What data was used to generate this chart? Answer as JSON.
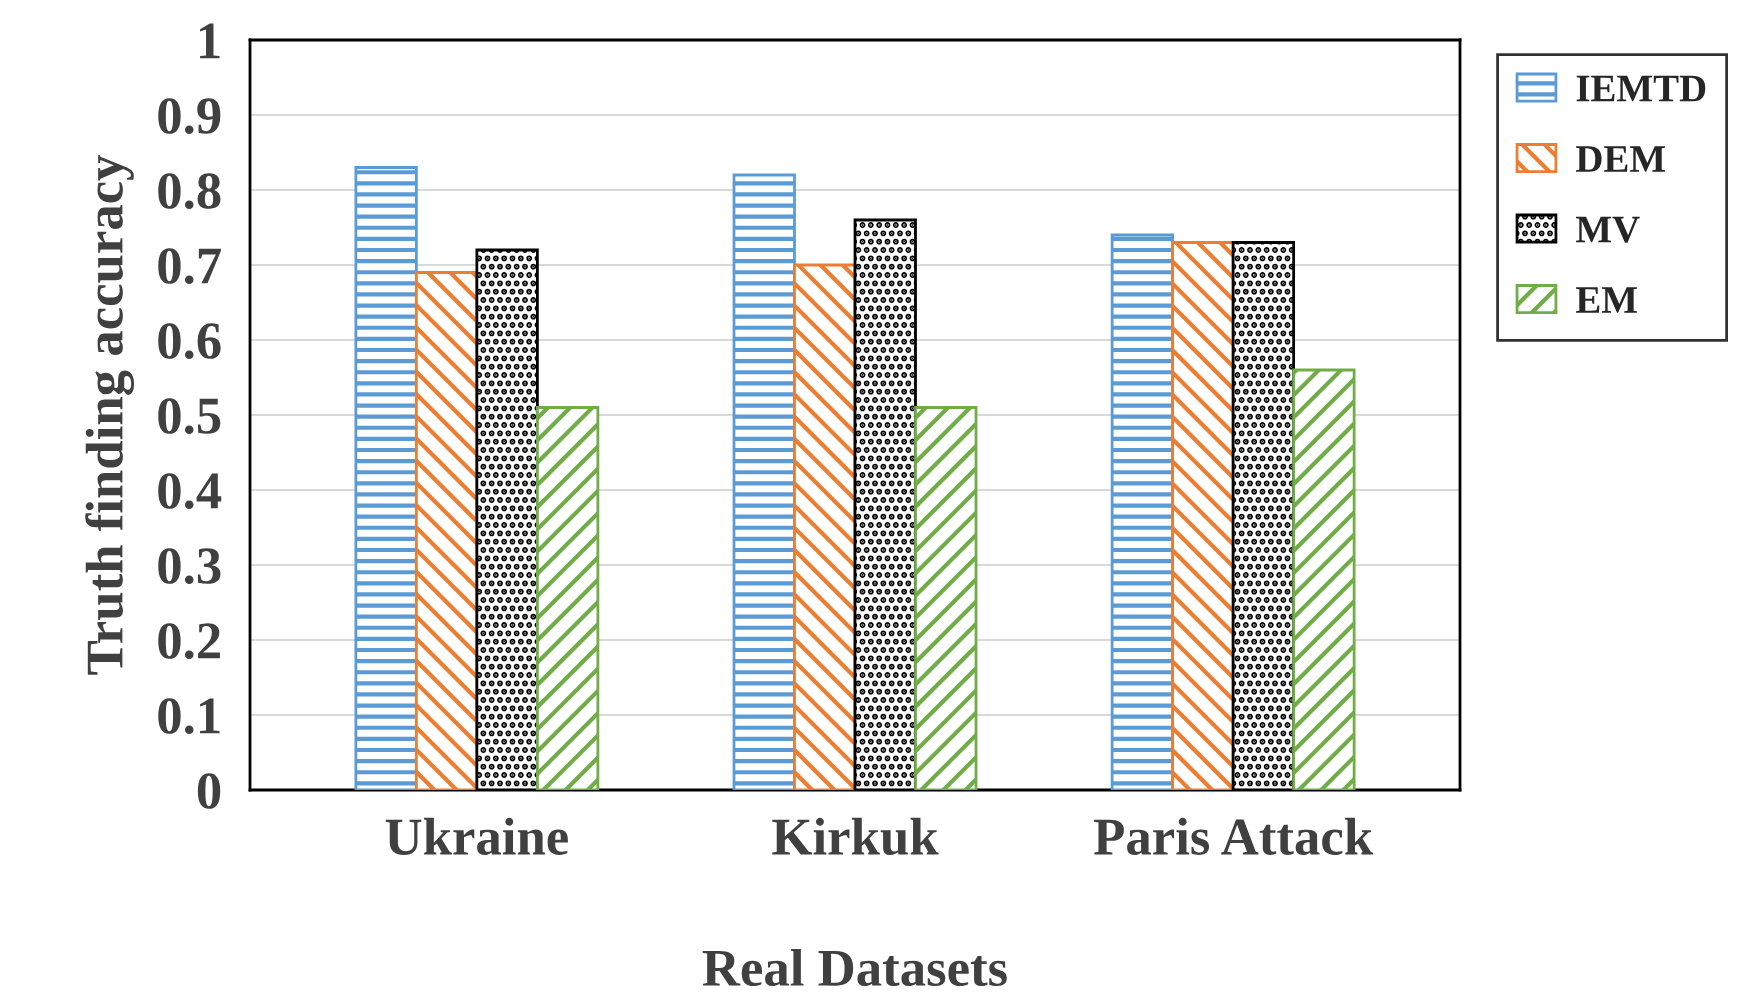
{
  "chart_data": {
    "type": "bar",
    "xlabel": "Real Datasets",
    "ylabel": "Truth finding accuracy",
    "categories": [
      "Ukraine",
      "Kirkuk",
      "Paris Attack"
    ],
    "series": [
      {
        "name": "IEMTD",
        "color": "#5b9bd5",
        "values": [
          0.83,
          0.82,
          0.74
        ]
      },
      {
        "name": "DEM",
        "color": "#ed7d31",
        "values": [
          0.69,
          0.7,
          0.73
        ]
      },
      {
        "name": "MV",
        "color": "#000000",
        "values": [
          0.72,
          0.76,
          0.73
        ]
      },
      {
        "name": "EM",
        "color": "#70ad47",
        "values": [
          0.51,
          0.51,
          0.56
        ]
      }
    ],
    "ylim": [
      0,
      1
    ],
    "yticks": [
      0,
      0.1,
      0.2,
      0.3,
      0.4,
      0.5,
      0.6,
      0.7,
      0.8,
      0.9,
      1
    ],
    "grid": "y",
    "legend": "right"
  }
}
